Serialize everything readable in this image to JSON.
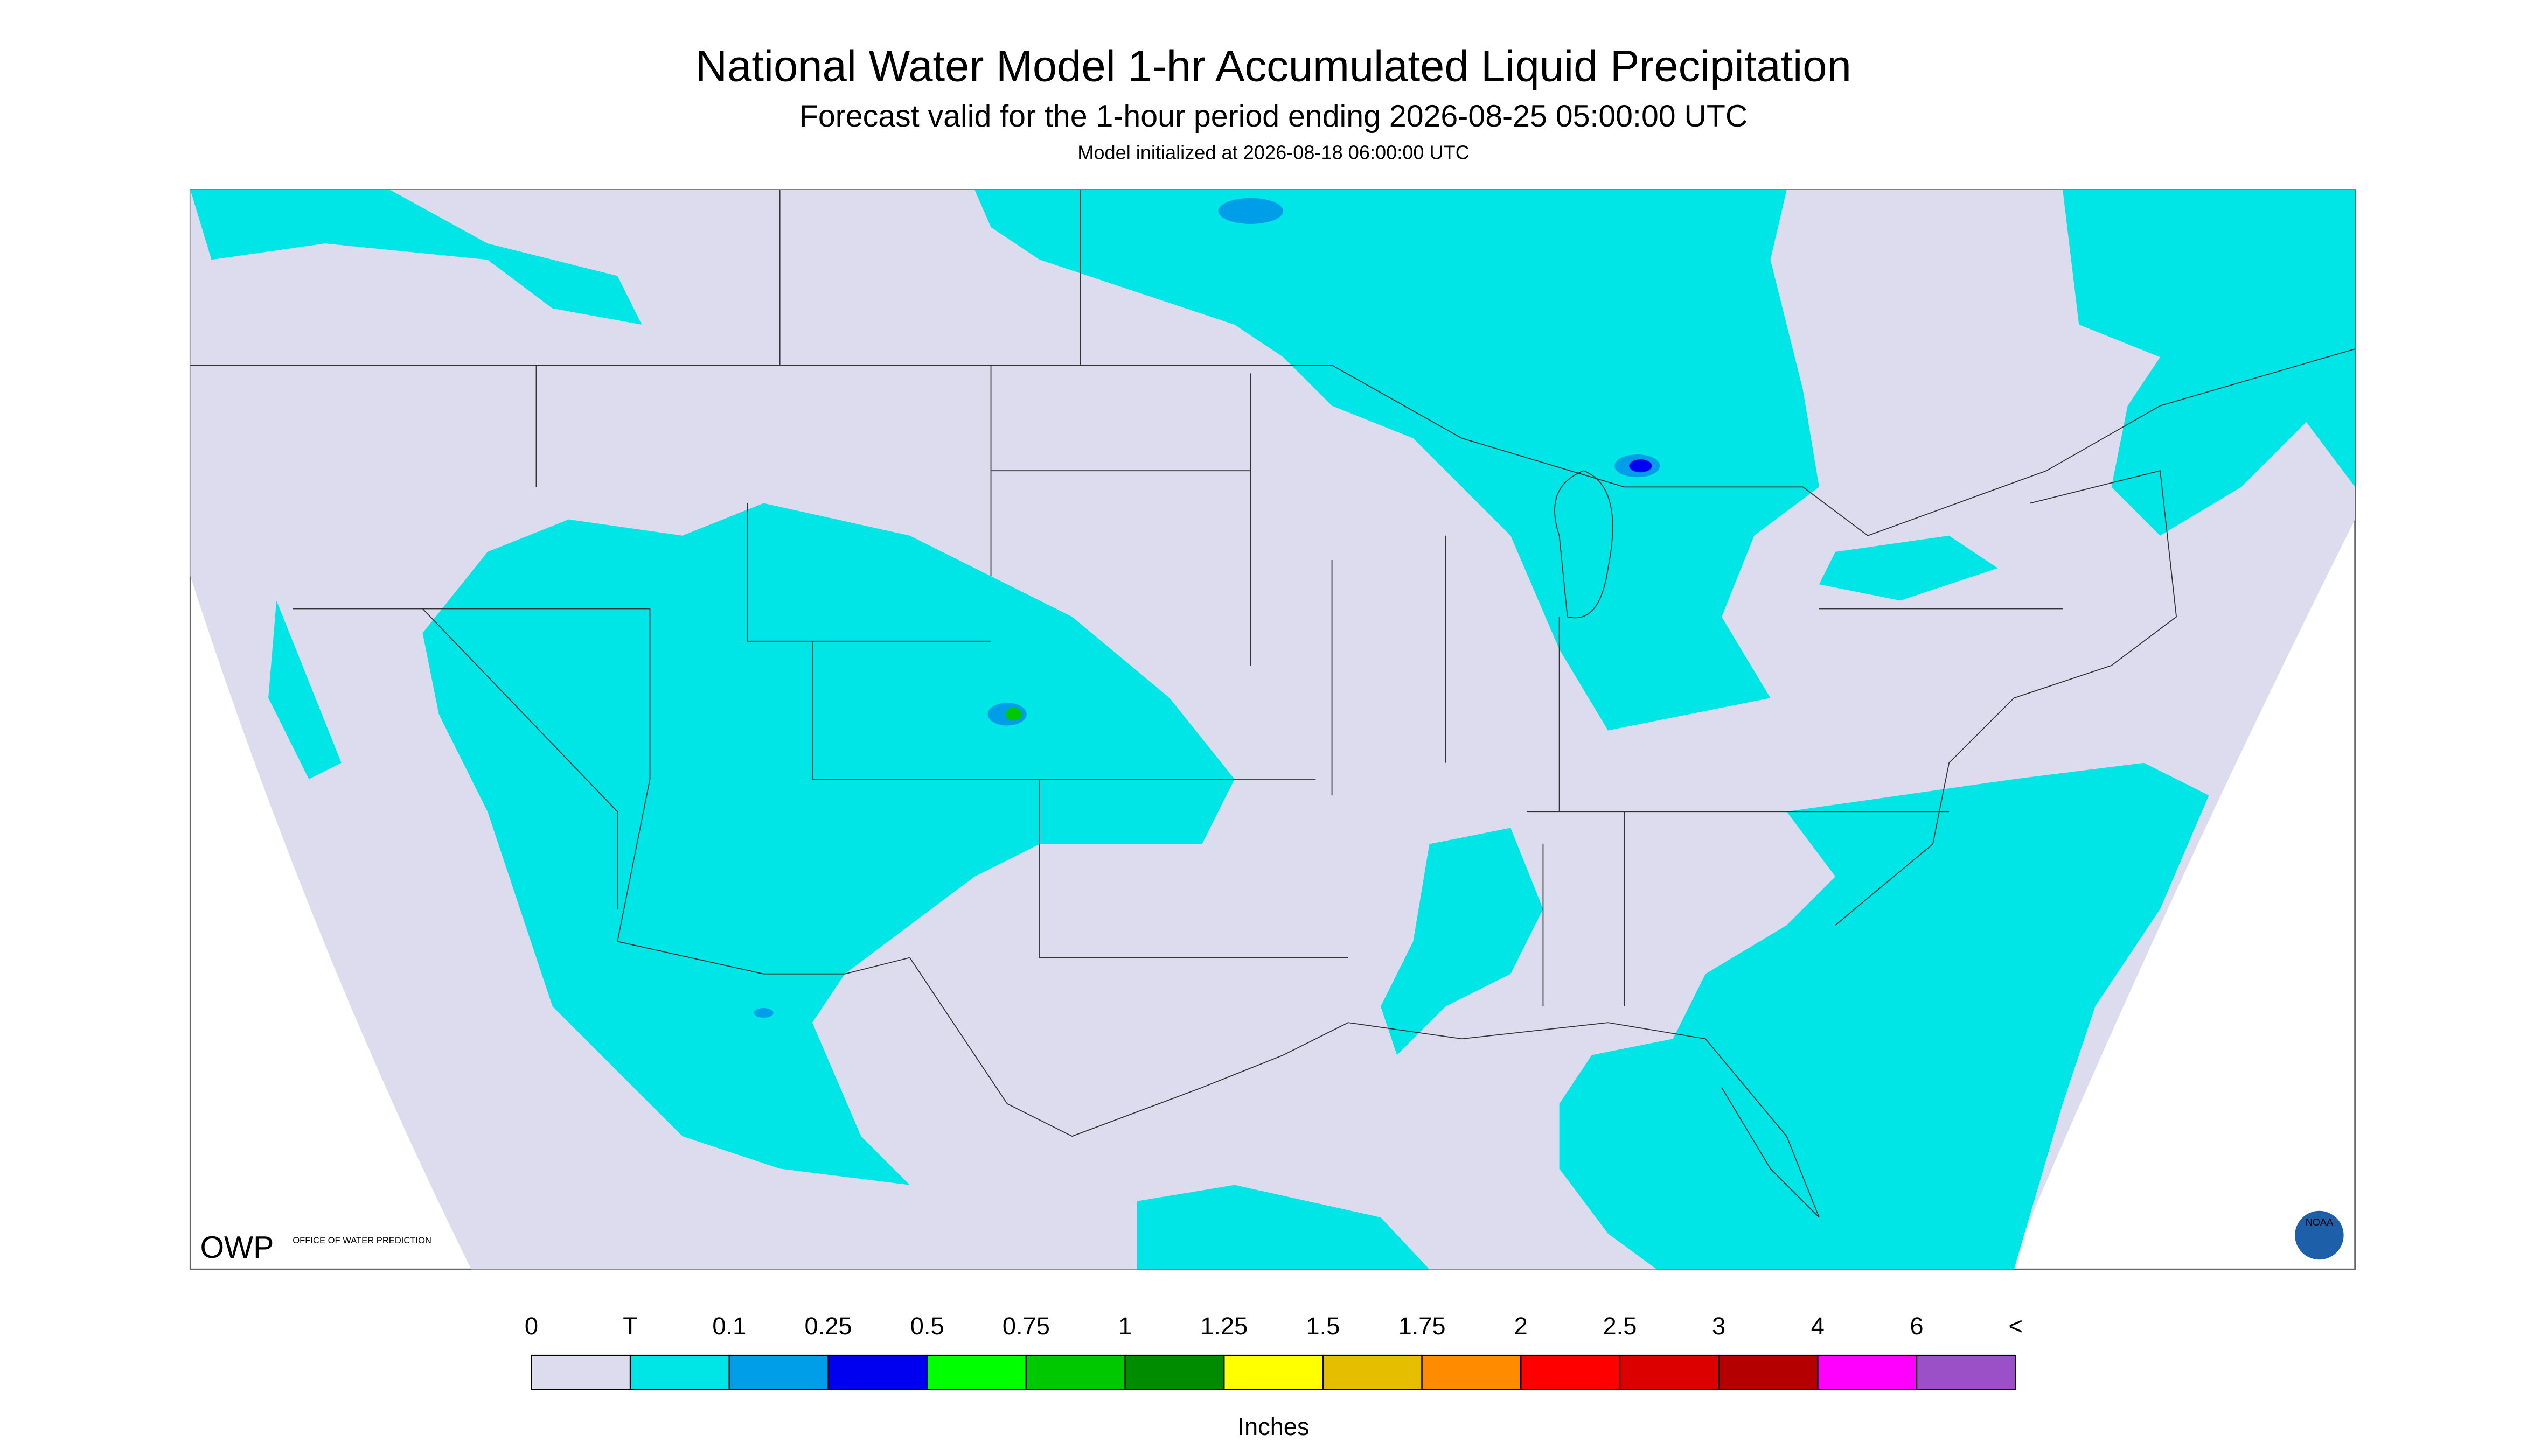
{
  "header": {
    "title": "National Water Model 1-hr Accumulated Liquid Precipitation",
    "subtitle": "Forecast valid for the 1-hour period ending 2026-08-25 05:00:00 UTC",
    "initialized": "Model initialized at 2026-08-18 06:00:00 UTC"
  },
  "logos": {
    "owp": "OWP",
    "owp_name": "OFFICE OF WATER PREDICTION",
    "noaa": "NOAA"
  },
  "legend": {
    "labels": [
      "0",
      "T",
      "0.1",
      "0.25",
      "0.5",
      "0.75",
      "1",
      "1.25",
      "1.5",
      "1.75",
      "2",
      "2.5",
      "3",
      "4",
      "6",
      "<"
    ],
    "colors": [
      "#dcdcee",
      "#00e6e6",
      "#009ee8",
      "#0000f0",
      "#00ff00",
      "#00c800",
      "#008c00",
      "#ffff00",
      "#e6be00",
      "#ff8c00",
      "#ff0000",
      "#dc0000",
      "#b40000",
      "#ff00ff",
      "#9c50c8"
    ],
    "unit": "Inches"
  }
}
